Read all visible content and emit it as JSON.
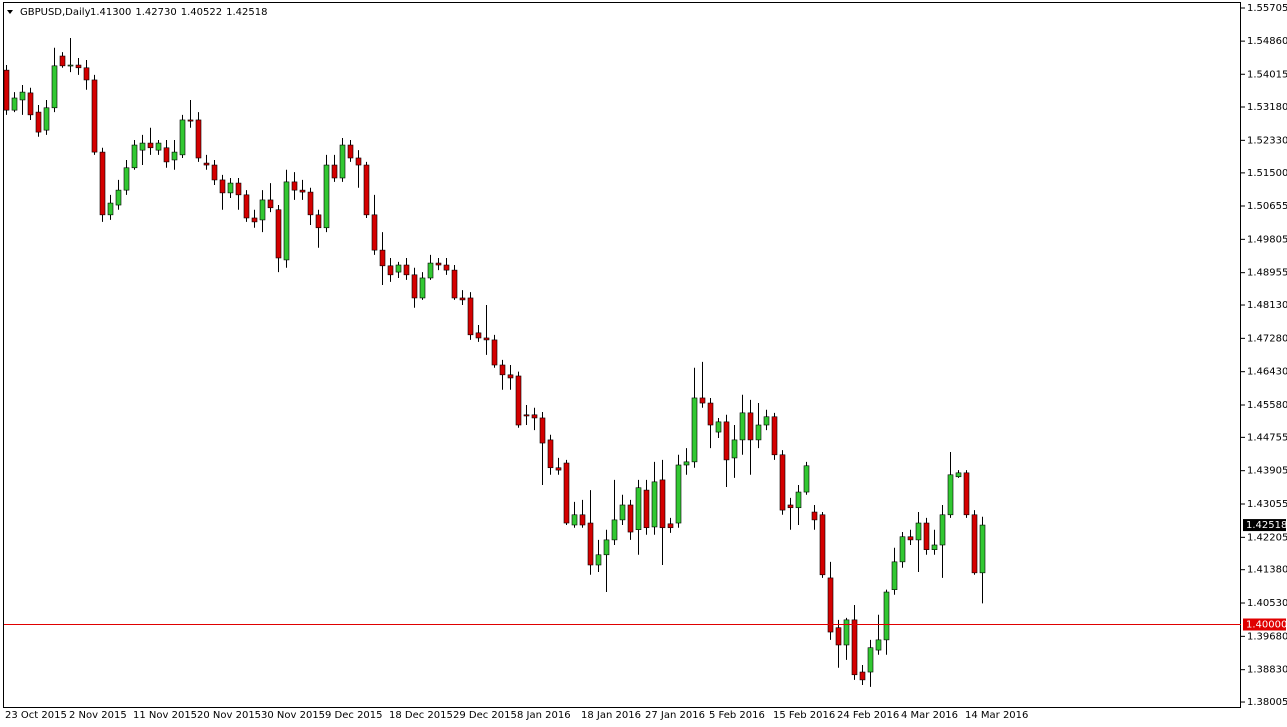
{
  "chart_data": {
    "type": "candlestick",
    "symbol": "GBPUSD,Daily",
    "header_values": [
      "1.41300",
      "1.42730",
      "1.40522",
      "1.42518"
    ],
    "categories": [
      "23 Oct 2015",
      null,
      null,
      null,
      null,
      null,
      null,
      null,
      "2 Nov 2015",
      null,
      null,
      null,
      null,
      null,
      null,
      null,
      "11 Nov 2015",
      null,
      null,
      null,
      null,
      null,
      null,
      null,
      "20 Nov 2015",
      null,
      null,
      null,
      null,
      null,
      null,
      null,
      "30 Nov 2015",
      null,
      null,
      null,
      null,
      null,
      null,
      null,
      "9 Dec 2015",
      null,
      null,
      null,
      null,
      null,
      null,
      null,
      "18 Dec 2015",
      null,
      null,
      null,
      null,
      null,
      null,
      null,
      "29 Dec 2015",
      null,
      null,
      null,
      null,
      null,
      null,
      null,
      "8 Jan 2016",
      null,
      null,
      null,
      null,
      null,
      null,
      null,
      "18 Jan 2016",
      null,
      null,
      null,
      null,
      null,
      null,
      null,
      "27 Jan 2016",
      null,
      null,
      null,
      null,
      null,
      null,
      null,
      "5 Feb 2016",
      null,
      null,
      null,
      null,
      null,
      null,
      null,
      "15 Feb 2016",
      null,
      null,
      null,
      null,
      null,
      null,
      null,
      "24 Feb 2016",
      null,
      null,
      null,
      null,
      null,
      null,
      null,
      "4 Mar 2016",
      null,
      null,
      null,
      null,
      null,
      null,
      null,
      "14 Mar 2016",
      null,
      null
    ],
    "open": [
      1.5412,
      1.531,
      1.5336,
      1.5354,
      1.5305,
      1.5259,
      1.5316,
      1.5448,
      1.5423,
      1.5425,
      1.5418,
      1.5387,
      1.5203,
      1.5043,
      1.5068,
      1.5106,
      1.5163,
      1.5208,
      1.5226,
      1.5208,
      1.5214,
      1.5183,
      1.5196,
      1.5285,
      1.5285,
      1.5175,
      1.517,
      1.5132,
      1.5099,
      1.5124,
      1.5094,
      1.5035,
      1.503,
      1.5081,
      1.5056,
      1.4928,
      1.5127,
      1.5106,
      1.5101,
      1.5043,
      1.501,
      1.517,
      1.5137,
      1.5221,
      1.5188,
      1.517,
      1.5043,
      1.4953,
      1.4913,
      1.4897,
      1.4915,
      1.489,
      1.4831,
      1.4882,
      1.492,
      1.4915,
      1.4902,
      1.4831,
      1.4831,
      1.4742,
      1.4729,
      1.4724,
      1.466,
      1.4635,
      1.4632,
      1.4533,
      1.4533,
      1.4525,
      1.4469,
      1.4398,
      1.441,
      1.4252,
      1.4278,
      1.4257,
      1.415,
      1.4176,
      1.4214,
      1.4265,
      1.4303,
      1.424,
      1.4341,
      1.4247,
      1.4367,
      1.4255,
      1.4257,
      1.4405,
      1.4413,
      1.4576,
      1.4563,
      1.4489,
      1.4515,
      1.4423,
      1.4469,
      1.4538,
      1.4469,
      1.4507,
      1.4528,
      1.4431,
      1.4303,
      1.4296,
      1.4336,
      1.4285,
      1.4278,
      1.4117,
      1.399,
      1.3946,
      1.401,
      1.3877,
      1.3877,
      1.3933,
      1.3959,
      1.4087,
      1.4158,
      1.4222,
      1.4214,
      1.4257,
      1.4189,
      1.4201,
      1.4278,
      1.4375,
      1.4385,
      1.4278,
      1.413
    ],
    "high": [
      1.5425,
      1.5356,
      1.5374,
      1.5367,
      1.5323,
      1.5336,
      1.5469,
      1.5458,
      1.5494,
      1.5443,
      1.5438,
      1.54,
      1.5214,
      1.5094,
      1.5132,
      1.5183,
      1.5234,
      1.5247,
      1.5265,
      1.5234,
      1.5234,
      1.5234,
      1.5298,
      1.5336,
      1.5305,
      1.5196,
      1.5183,
      1.5145,
      1.5137,
      1.5137,
      1.5106,
      1.5056,
      1.5106,
      1.5124,
      1.5068,
      1.5158,
      1.5152,
      1.5132,
      1.5112,
      1.5056,
      1.5196,
      1.5196,
      1.5239,
      1.5234,
      1.5208,
      1.5178,
      1.5094,
      1.4999,
      1.4933,
      1.4923,
      1.4933,
      1.4908,
      1.4897,
      1.4941,
      1.4933,
      1.4933,
      1.4915,
      1.4851,
      1.4846,
      1.4762,
      1.4813,
      1.4737,
      1.4673,
      1.466,
      1.4643,
      1.4558,
      1.4551,
      1.454,
      1.4482,
      1.4423,
      1.4418,
      1.4311,
      1.4316,
      1.4341,
      1.4214,
      1.424,
      1.4367,
      1.4329,
      1.4316,
      1.4367,
      1.4367,
      1.4413,
      1.4418,
      1.427,
      1.4431,
      1.4448,
      1.4653,
      1.4668,
      1.4576,
      1.4525,
      1.4533,
      1.4507,
      1.4584,
      1.4571,
      1.4563,
      1.4546,
      1.4538,
      1.4443,
      1.4321,
      1.4354,
      1.4413,
      1.4303,
      1.4285,
      1.4158,
      1.401,
      1.4015,
      1.4048,
      1.3895,
      1.3959,
      1.4023,
      1.4087,
      1.4194,
      1.4234,
      1.424,
      1.4285,
      1.427,
      1.424,
      1.4303,
      1.4438,
      1.4392,
      1.4392,
      1.429,
      1.4273
    ],
    "low": [
      1.5298,
      1.5305,
      1.5298,
      1.5285,
      1.5242,
      1.5247,
      1.5305,
      1.5418,
      1.5407,
      1.54,
      1.5362,
      1.5196,
      1.5025,
      1.503,
      1.5056,
      1.5094,
      1.5158,
      1.517,
      1.5196,
      1.5196,
      1.5163,
      1.5158,
      1.5188,
      1.5265,
      1.5178,
      1.5158,
      1.5119,
      1.5056,
      1.5086,
      1.5056,
      1.5025,
      1.501,
      1.4999,
      1.505,
      1.4897,
      1.4908,
      1.5081,
      1.5081,
      1.5017,
      1.4959,
      1.4999,
      1.5127,
      1.5127,
      1.5178,
      1.5112,
      1.5035,
      1.4941,
      1.4864,
      1.4872,
      1.4882,
      1.4877,
      1.4806,
      1.4826,
      1.4877,
      1.4902,
      1.489,
      1.4826,
      1.4813,
      1.4724,
      1.4719,
      1.4686,
      1.4653,
      1.4597,
      1.4597,
      1.45,
      1.4507,
      1.4494,
      1.4354,
      1.438,
      1.438,
      1.4252,
      1.4245,
      1.4245,
      1.4125,
      1.4132,
      1.4081,
      1.4201,
      1.4252,
      1.4214,
      1.4176,
      1.4227,
      1.4227,
      1.415,
      1.4232,
      1.4245,
      1.438,
      1.4398,
      1.4551,
      1.4448,
      1.4474,
      1.4349,
      1.4372,
      1.4431,
      1.438,
      1.4448,
      1.4494,
      1.4418,
      1.4278,
      1.424,
      1.4252,
      1.4329,
      1.424,
      1.4117,
      1.3959,
      1.3888,
      1.3908,
      1.3857,
      1.3844,
      1.3839,
      1.3921,
      1.3921,
      1.4074,
      1.4143,
      1.4201,
      1.4132,
      1.4176,
      1.4176,
      1.4117,
      1.427,
      1.4372,
      1.427,
      1.4125,
      1.40522
    ],
    "close": [
      1.531,
      1.5341,
      1.5356,
      1.5298,
      1.5254,
      1.5316,
      1.5423,
      1.5423,
      1.5425,
      1.5418,
      1.5387,
      1.5203,
      1.5043,
      1.5073,
      1.5106,
      1.5163,
      1.5221,
      1.5226,
      1.5214,
      1.5226,
      1.5178,
      1.5203,
      1.5285,
      1.5282,
      1.5188,
      1.517,
      1.5132,
      1.5099,
      1.5124,
      1.5094,
      1.5035,
      1.5025,
      1.5081,
      1.5061,
      1.4933,
      1.5127,
      1.5106,
      1.5101,
      1.5043,
      1.501,
      1.517,
      1.5137,
      1.5221,
      1.5188,
      1.517,
      1.5043,
      1.4953,
      1.4913,
      1.489,
      1.4915,
      1.489,
      1.4831,
      1.4882,
      1.492,
      1.4915,
      1.4902,
      1.4831,
      1.4826,
      1.4737,
      1.4729,
      1.4724,
      1.466,
      1.4635,
      1.4627,
      1.4507,
      1.453,
      1.4525,
      1.4461,
      1.4398,
      1.4392,
      1.4257,
      1.4278,
      1.4252,
      1.415,
      1.4176,
      1.4214,
      1.4265,
      1.4303,
      1.4234,
      1.4347,
      1.4245,
      1.4362,
      1.4245,
      1.4245,
      1.4405,
      1.4413,
      1.4576,
      1.4563,
      1.4507,
      1.4515,
      1.4418,
      1.4469,
      1.4538,
      1.4469,
      1.4507,
      1.4528,
      1.4431,
      1.429,
      1.4296,
      1.4336,
      1.4403,
      1.4265,
      1.4125,
      1.3979,
      1.3946,
      1.401,
      1.387,
      1.3857,
      1.3939,
      1.3959,
      1.4081,
      1.4158,
      1.4222,
      1.4214,
      1.4257,
      1.4189,
      1.4201,
      1.4278,
      1.438,
      1.4385,
      1.4278,
      1.413,
      1.42518
    ],
    "up_color": "#32c832",
    "down_color": "#d40000",
    "wick_color": "#000000",
    "ylim": [
      1.37878,
      1.55858
    ],
    "yticks": [
      1.55705,
      {
        "value": 1.5486,
        "label": "1.54860"
      },
      1.54015,
      {
        "value": 1.5318,
        "label": "1.53180"
      },
      {
        "value": 1.5233,
        "label": "1.52330"
      },
      {
        "value": 1.515,
        "label": "1.51500"
      },
      1.50655,
      1.49805,
      1.48955,
      {
        "value": 1.4813,
        "label": "1.48130"
      },
      {
        "value": 1.4728,
        "label": "1.47280"
      },
      {
        "value": 1.4643,
        "label": "1.46430"
      },
      {
        "value": 1.4558,
        "label": "1.45580"
      },
      1.44755,
      1.43905,
      1.43055,
      1.42205,
      {
        "value": 1.4138,
        "label": "1.41380"
      },
      {
        "value": 1.4053,
        "label": "1.40530"
      },
      {
        "value": 1.3968,
        "label": "1.39680"
      },
      {
        "value": 1.3883,
        "label": "1.38830"
      },
      1.38005
    ],
    "hline": {
      "value": 1.4,
      "label": "1.40000",
      "color": "#e00000"
    }
  }
}
